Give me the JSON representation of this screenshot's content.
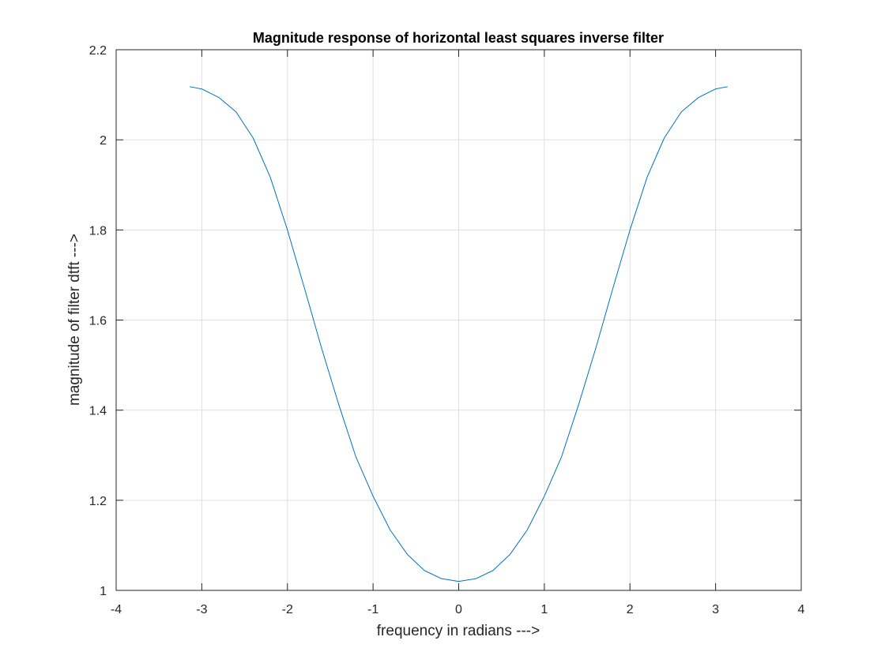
{
  "chart_data": {
    "type": "line",
    "title": "Magnitude response of horizontal least squares inverse filter",
    "xlabel": "frequency in radians --->",
    "ylabel": "magnitude of filter dtft  --->",
    "xlim": [
      -4,
      4
    ],
    "ylim": [
      1,
      2.2
    ],
    "xticks": [
      -4,
      -3,
      -2,
      -1,
      0,
      1,
      2,
      3,
      4
    ],
    "yticks": [
      1,
      1.2,
      1.4,
      1.6,
      1.8,
      2,
      2.2
    ],
    "xtick_labels": [
      "-4",
      "-3",
      "-2",
      "-1",
      "0",
      "1",
      "2",
      "3",
      "4"
    ],
    "ytick_labels": [
      "1",
      "1.2",
      "1.4",
      "1.6",
      "1.8",
      "2",
      "2.2"
    ],
    "grid": true,
    "line_color": "#0072bd",
    "series": [
      {
        "x": [
          -3.1416,
          -3.0,
          -2.8,
          -2.6,
          -2.4,
          -2.2,
          -2.0,
          -1.8,
          -1.6,
          -1.4,
          -1.2,
          -1.0,
          -0.8,
          -0.6,
          -0.4,
          -0.2,
          0.0,
          0.2,
          0.4,
          0.6,
          0.8,
          1.0,
          1.2,
          1.4,
          1.6,
          1.8,
          2.0,
          2.2,
          2.4,
          2.6,
          2.8,
          3.0,
          3.1416
        ],
        "y": [
          2.118,
          2.113,
          2.094,
          2.062,
          2.004,
          1.917,
          1.8,
          1.67,
          1.537,
          1.412,
          1.296,
          1.209,
          1.134,
          1.08,
          1.044,
          1.026,
          1.02,
          1.026,
          1.044,
          1.08,
          1.134,
          1.209,
          1.296,
          1.412,
          1.537,
          1.67,
          1.8,
          1.917,
          2.004,
          2.062,
          2.094,
          2.113,
          2.118
        ]
      }
    ]
  }
}
